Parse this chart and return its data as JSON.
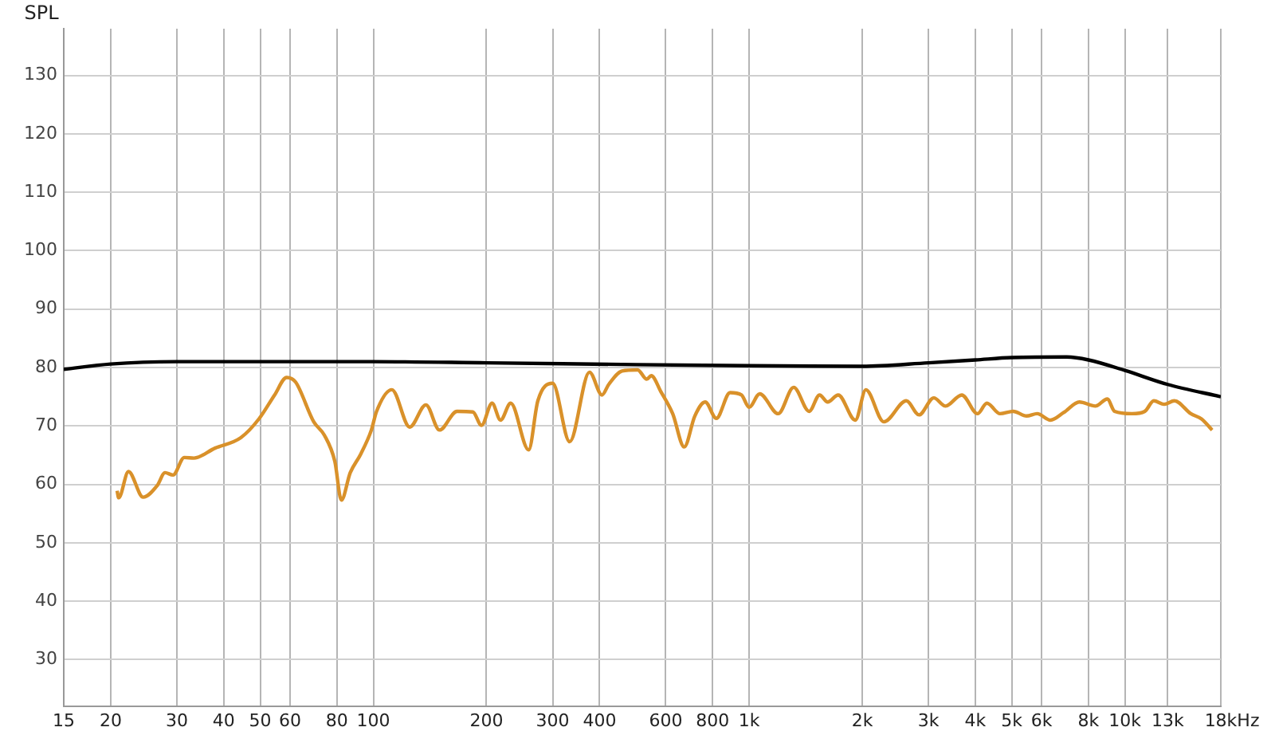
{
  "chart_data": {
    "type": "line",
    "ylabel": "SPL",
    "log": "x",
    "grid": true,
    "legend": false,
    "marker": "none",
    "line_style": "solid",
    "xlim": [
      15,
      18000
    ],
    "ylim": [
      22,
      138
    ],
    "xticks": [
      15,
      20,
      30,
      40,
      50,
      60,
      80,
      100,
      200,
      300,
      400,
      600,
      800,
      {
        "value": 1000,
        "label": "1k"
      },
      {
        "value": 2000,
        "label": "2k"
      },
      {
        "value": 3000,
        "label": "3k"
      },
      {
        "value": 4000,
        "label": "4k"
      },
      {
        "value": 5000,
        "label": "5k"
      },
      {
        "value": 6000,
        "label": "6k"
      },
      {
        "value": 8000,
        "label": "8k"
      },
      {
        "value": 10000,
        "label": "10k"
      },
      {
        "value": 13000,
        "label": "13k"
      },
      {
        "value": 18000,
        "label": "18k"
      }
    ],
    "xlabel": "Hz",
    "yticks": [
      30,
      40,
      50,
      60,
      70,
      80,
      90,
      100,
      110,
      120,
      130
    ],
    "series": [
      {
        "color": "#000000",
        "x": [
          15,
          20,
          30,
          100,
          200,
          500,
          1000,
          2000,
          3000,
          4000,
          5000,
          7000,
          8000,
          10000,
          13000,
          18000
        ],
        "values": [
          79.7,
          80.6,
          81,
          81,
          80.8,
          80.5,
          80.3,
          80.2,
          80.8,
          81.3,
          81.7,
          81.8,
          81.3,
          79.5,
          77.1,
          75
        ]
      },
      {
        "color": "#d9912a",
        "x": [
          20.8,
          21,
          22.3,
          24.4,
          26.6,
          27.9,
          29.3,
          31.4,
          33.3,
          37.9,
          44.4,
          49.6,
          54.6,
          58.8,
          62.1,
          69.4,
          74.1,
          79,
          82.2,
          86.8,
          92.6,
          98.8,
          102,
          112,
          125,
          138,
          150,
          167,
          184,
          194,
          207,
          218,
          232,
          259,
          274,
          300,
          333,
          376,
          406,
          423,
          459,
          505,
          534,
          549,
          582,
          626,
          672,
          717,
          764,
          818,
          890,
          954,
          1000,
          1067,
          1195,
          1314,
          1445,
          1540,
          1618,
          1726,
          1917,
          2045,
          2283,
          2621,
          2833,
          3101,
          3330,
          3681,
          4053,
          4293,
          4654,
          5046,
          5474,
          5842,
          6339,
          6875,
          7568,
          8347,
          8980,
          9390,
          10440,
          11300,
          11940,
          12720,
          13540,
          14980,
          15990,
          17070
        ],
        "values": [
          58.9,
          57.7,
          62.2,
          57.8,
          59.8,
          62,
          61.6,
          64.6,
          64.5,
          66.2,
          68,
          71.2,
          75.3,
          78.3,
          77.5,
          70.7,
          68.4,
          63.9,
          57.3,
          62,
          65.2,
          69.3,
          72.5,
          76.2,
          69.8,
          73.6,
          69.3,
          72.5,
          72.4,
          70.1,
          73.9,
          71,
          73.9,
          65.9,
          74.3,
          77.3,
          67.3,
          79.2,
          75.3,
          77.1,
          79.4,
          79.6,
          78,
          78.6,
          75.9,
          72.1,
          66.4,
          71.7,
          74.1,
          71.3,
          75.7,
          75.3,
          73.2,
          75.5,
          72.1,
          76.6,
          72.5,
          75.3,
          74.1,
          75.3,
          71,
          76.2,
          70.7,
          74.3,
          71.9,
          74.8,
          73.4,
          75.3,
          72.1,
          73.9,
          72.1,
          72.5,
          71.7,
          72.1,
          71,
          72.3,
          74.1,
          73.4,
          74.6,
          72.5,
          72.1,
          72.5,
          74.3,
          73.7,
          74.3,
          72.1,
          71.2,
          69.3
        ]
      }
    ]
  }
}
